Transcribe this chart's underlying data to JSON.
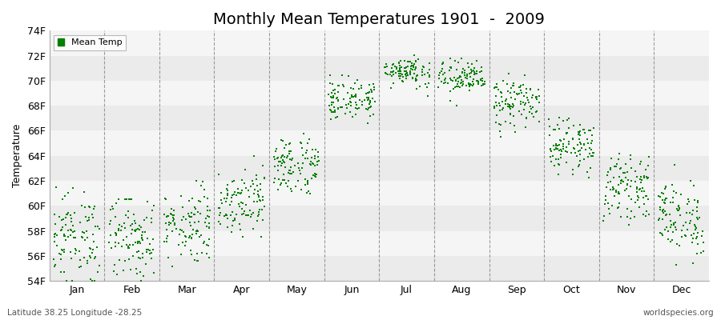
{
  "title": "Monthly Mean Temperatures 1901  -  2009",
  "ylabel": "Temperature",
  "xlabel_bottom_left": "Latitude 38.25 Longitude -28.25",
  "xlabel_bottom_right": "worldspecies.org",
  "legend_label": "Mean Temp",
  "months": [
    "Jan",
    "Feb",
    "Mar",
    "Apr",
    "May",
    "Jun",
    "Jul",
    "Aug",
    "Sep",
    "Oct",
    "Nov",
    "Dec"
  ],
  "ytick_labels": [
    "54F",
    "56F",
    "58F",
    "60F",
    "62F",
    "64F",
    "66F",
    "68F",
    "70F",
    "72F",
    "74F"
  ],
  "ytick_values": [
    54,
    56,
    58,
    60,
    62,
    64,
    66,
    68,
    70,
    72,
    74
  ],
  "ylim": [
    54,
    74
  ],
  "dot_color": "#008000",
  "background_color": "#ffffff",
  "band_color_1": "#ebebeb",
  "band_color_2": "#f5f5f5",
  "dashed_line_color": "#777777",
  "title_fontsize": 14,
  "label_fontsize": 9,
  "tick_fontsize": 9,
  "month_means": [
    57.5,
    57.5,
    58.5,
    60.5,
    63.2,
    68.5,
    70.8,
    70.2,
    68.2,
    64.8,
    61.5,
    59.0
  ],
  "month_stds": [
    1.8,
    1.7,
    1.5,
    1.3,
    1.2,
    0.8,
    0.6,
    0.7,
    1.0,
    1.0,
    1.2,
    1.5
  ],
  "month_ranges": [
    [
      54.0,
      61.5
    ],
    [
      54.0,
      60.5
    ],
    [
      55.0,
      62.0
    ],
    [
      57.5,
      64.0
    ],
    [
      61.0,
      67.5
    ],
    [
      65.5,
      71.5
    ],
    [
      68.5,
      73.5
    ],
    [
      67.5,
      73.0
    ],
    [
      65.5,
      71.5
    ],
    [
      62.0,
      68.5
    ],
    [
      58.5,
      65.5
    ],
    [
      55.0,
      63.5
    ]
  ],
  "n_years": 109
}
